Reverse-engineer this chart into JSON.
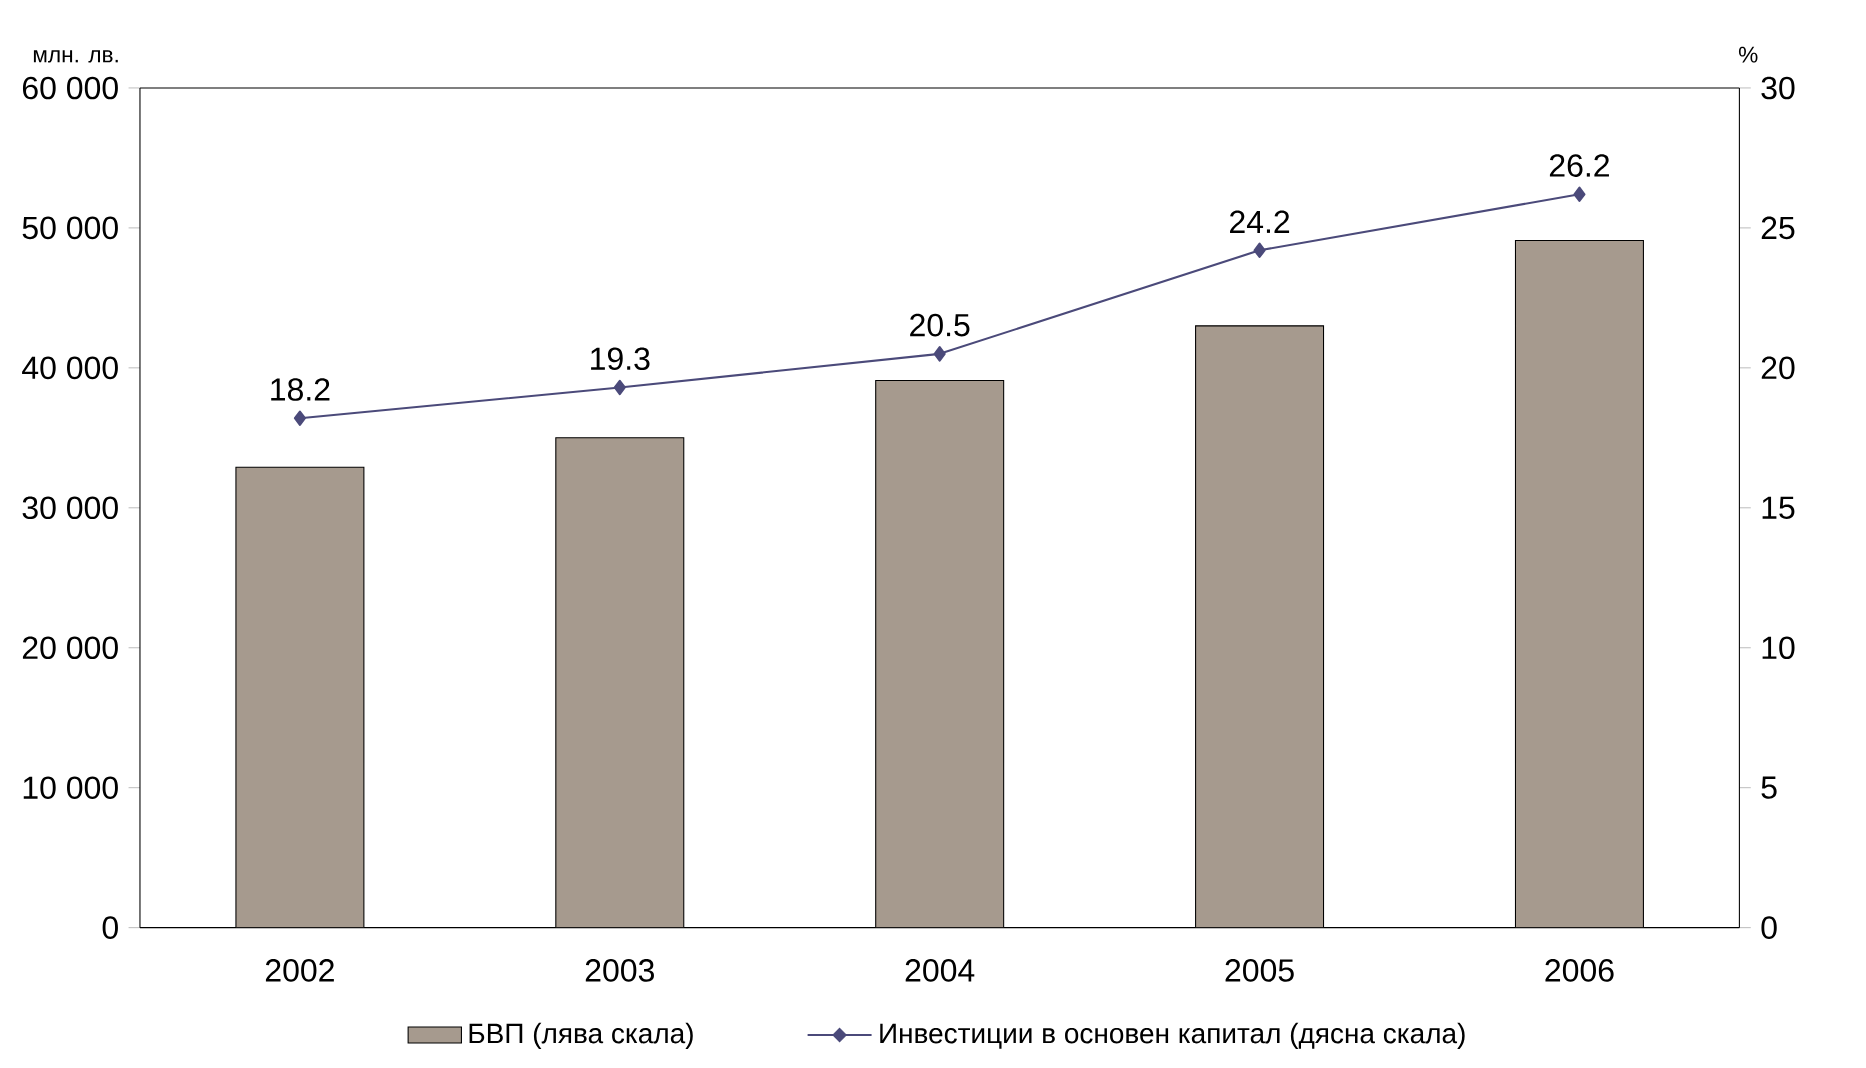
{
  "chart_data": {
    "type": "bar",
    "categories": [
      "2002",
      "2003",
      "2004",
      "2005",
      "2006"
    ],
    "ylabel": "млн. лв.",
    "y2label": "%",
    "series": [
      {
        "name": "БВП (лява скала)",
        "color": "#a69a8e",
        "values": [
          32900,
          35000,
          39100,
          43000,
          49100
        ]
      },
      {
        "name": "Инвестиции в основен капитал (дясна скала)",
        "type": "line",
        "axis": "y2",
        "color": "#4b4a7a",
        "marker": "diamond",
        "values": [
          18.2,
          19.3,
          20.5,
          24.2,
          26.2
        ],
        "value_labels": [
          "18.2",
          "19.3",
          "20.5",
          "24.2",
          "26.2"
        ]
      }
    ],
    "ylim": [
      0,
      60000
    ],
    "yticks": [
      {
        "value": 0,
        "label": "0"
      },
      {
        "value": 10000,
        "label": "10 000"
      },
      {
        "value": 20000,
        "label": "20 000"
      },
      {
        "value": 30000,
        "label": "30 000"
      },
      {
        "value": 40000,
        "label": "40 000"
      },
      {
        "value": 50000,
        "label": "50 000"
      },
      {
        "value": 60000,
        "label": "60 000"
      }
    ],
    "y2lim": [
      0,
      30
    ],
    "y2ticks": [
      0,
      5,
      10,
      15,
      20,
      25,
      30
    ],
    "legend": "bottom"
  }
}
